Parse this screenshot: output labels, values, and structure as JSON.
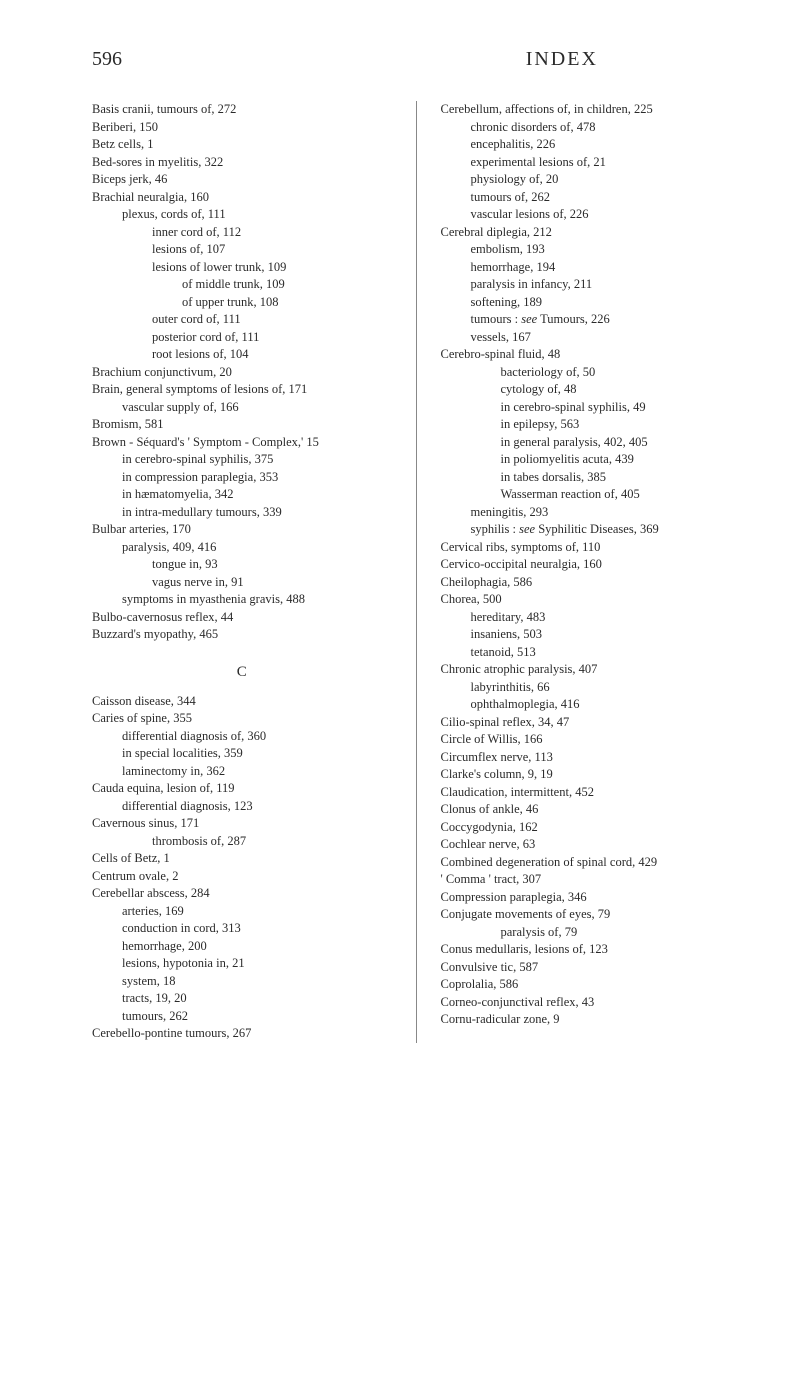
{
  "header": {
    "page_number": "596",
    "title": "INDEX"
  },
  "section_letter": "C",
  "left_column": [
    {
      "t": "Basis cranii, tumours of, 272",
      "l": 0
    },
    {
      "t": "Beriberi, 150",
      "l": 0
    },
    {
      "t": "Betz cells, 1",
      "l": 0
    },
    {
      "t": "Bed-sores in myelitis, 322",
      "l": 0
    },
    {
      "t": "Biceps jerk, 46",
      "l": 0
    },
    {
      "t": "Brachial neuralgia, 160",
      "l": 0
    },
    {
      "t": "plexus, cords of, 111",
      "l": 1
    },
    {
      "t": "inner cord of, 112",
      "l": 2
    },
    {
      "t": "lesions of, 107",
      "l": 2
    },
    {
      "t": "lesions of lower trunk, 109",
      "l": 2
    },
    {
      "t": "of middle trunk, 109",
      "l": 3
    },
    {
      "t": "of upper trunk, 108",
      "l": 3
    },
    {
      "t": "outer cord of, 111",
      "l": 2
    },
    {
      "t": "posterior cord of, 111",
      "l": 2
    },
    {
      "t": "root lesions of, 104",
      "l": 2
    },
    {
      "t": "Brachium conjunctivum, 20",
      "l": 0
    },
    {
      "t": "Brain, general symptoms of lesions of, 171",
      "l": 0
    },
    {
      "t": "vascular supply of, 166",
      "l": 1
    },
    {
      "t": "Bromism, 581",
      "l": 0
    },
    {
      "t": "Brown - Séquard's ' Symptom - Complex,' 15",
      "l": 0
    },
    {
      "t": "in cerebro-spinal syphilis, 375",
      "l": 1
    },
    {
      "t": "in compression paraplegia, 353",
      "l": 1
    },
    {
      "t": "in hæmatomyelia, 342",
      "l": 1
    },
    {
      "t": "in intra-medullary tumours, 339",
      "l": 1
    },
    {
      "t": "Bulbar arteries, 170",
      "l": 0
    },
    {
      "t": "paralysis, 409, 416",
      "l": 1
    },
    {
      "t": "tongue in, 93",
      "l": 2
    },
    {
      "t": "vagus nerve in, 91",
      "l": 2
    },
    {
      "t": "symptoms in myasthenia gravis, 488",
      "l": 1
    },
    {
      "t": "Bulbo-cavernosus reflex, 44",
      "l": 0
    },
    {
      "t": "Buzzard's myopathy, 465",
      "l": 0
    }
  ],
  "left_column_c": [
    {
      "t": "Caisson disease, 344",
      "l": 0
    },
    {
      "t": "Caries of spine, 355",
      "l": 0
    },
    {
      "t": "differential diagnosis of, 360",
      "l": 1
    },
    {
      "t": "in special localities, 359",
      "l": 1
    },
    {
      "t": "laminectomy in, 362",
      "l": 1
    },
    {
      "t": "Cauda equina, lesion of, 119",
      "l": 0
    },
    {
      "t": "differential diagnosis, 123",
      "l": 1
    },
    {
      "t": "Cavernous sinus, 171",
      "l": 0
    },
    {
      "t": "thrombosis of, 287",
      "l": 2
    },
    {
      "t": "Cells of Betz, 1",
      "l": 0
    },
    {
      "t": "Centrum ovale, 2",
      "l": 0
    },
    {
      "t": "Cerebellar abscess, 284",
      "l": 0
    },
    {
      "t": "arteries, 169",
      "l": 1
    },
    {
      "t": "conduction in cord, 313",
      "l": 1
    },
    {
      "t": "hemorrhage, 200",
      "l": 1
    },
    {
      "t": "lesions, hypotonia in, 21",
      "l": 1
    },
    {
      "t": "system, 18",
      "l": 1
    },
    {
      "t": "tracts, 19, 20",
      "l": 1
    },
    {
      "t": "tumours, 262",
      "l": 1
    },
    {
      "t": "Cerebello-pontine tumours, 267",
      "l": 0
    }
  ],
  "right_column": [
    {
      "t": "Cerebellum, affections of, in children, 225",
      "l": 0
    },
    {
      "t": "chronic disorders of, 478",
      "l": 1
    },
    {
      "t": "encephalitis, 226",
      "l": 1
    },
    {
      "t": "experimental lesions of, 21",
      "l": 1
    },
    {
      "t": "physiology of, 20",
      "l": 1
    },
    {
      "t": "tumours of, 262",
      "l": 1
    },
    {
      "t": "vascular lesions of, 226",
      "l": 1
    },
    {
      "t": "Cerebral diplegia, 212",
      "l": 0
    },
    {
      "t": "embolism, 193",
      "l": 1
    },
    {
      "t": "hemorrhage, 194",
      "l": 1
    },
    {
      "t": "paralysis in infancy, 211",
      "l": 1
    },
    {
      "t": "softening, 189",
      "l": 1
    },
    {
      "t": "tumours : see Tumours, 226",
      "l": 1,
      "italic_word": "see"
    },
    {
      "t": "vessels, 167",
      "l": 1
    },
    {
      "t": "Cerebro-spinal fluid, 48",
      "l": 0
    },
    {
      "t": "bacteriology of, 50",
      "l": 2
    },
    {
      "t": "cytology of, 48",
      "l": 2
    },
    {
      "t": "in cerebro-spinal syphilis, 49",
      "l": 2
    },
    {
      "t": "in epilepsy, 563",
      "l": 2
    },
    {
      "t": "in general paralysis, 402, 405",
      "l": 2
    },
    {
      "t": "in poliomyelitis acuta, 439",
      "l": 2
    },
    {
      "t": "in tabes dorsalis, 385",
      "l": 2
    },
    {
      "t": "Wasserman reaction of, 405",
      "l": 2
    },
    {
      "t": "meningitis, 293",
      "l": 1
    },
    {
      "t": "syphilis : see Syphilitic Diseases, 369",
      "l": 1,
      "italic_word": "see"
    },
    {
      "t": "Cervical ribs, symptoms of, 110",
      "l": 0
    },
    {
      "t": "Cervico-occipital neuralgia, 160",
      "l": 0
    },
    {
      "t": "Cheilophagia, 586",
      "l": 0
    },
    {
      "t": "Chorea, 500",
      "l": 0
    },
    {
      "t": "hereditary, 483",
      "l": 1
    },
    {
      "t": "insaniens, 503",
      "l": 1
    },
    {
      "t": "tetanoid, 513",
      "l": 1
    },
    {
      "t": "Chronic atrophic paralysis, 407",
      "l": 0
    },
    {
      "t": "labyrinthitis, 66",
      "l": 1
    },
    {
      "t": "ophthalmoplegia, 416",
      "l": 1
    },
    {
      "t": "Cilio-spinal reflex, 34, 47",
      "l": 0
    },
    {
      "t": "Circle of Willis, 166",
      "l": 0
    },
    {
      "t": "Circumflex nerve, 113",
      "l": 0
    },
    {
      "t": "Clarke's column, 9, 19",
      "l": 0
    },
    {
      "t": "Claudication, intermittent, 452",
      "l": 0
    },
    {
      "t": "Clonus of ankle, 46",
      "l": 0
    },
    {
      "t": "Coccygodynia, 162",
      "l": 0
    },
    {
      "t": "Cochlear nerve, 63",
      "l": 0
    },
    {
      "t": "Combined degeneration of spinal cord, 429",
      "l": 0
    },
    {
      "t": "' Comma ' tract, 307",
      "l": 0
    },
    {
      "t": "Compression paraplegia, 346",
      "l": 0
    },
    {
      "t": "Conjugate movements of eyes, 79",
      "l": 0
    },
    {
      "t": "paralysis of, 79",
      "l": 2
    },
    {
      "t": "Conus medullaris, lesions of, 123",
      "l": 0
    },
    {
      "t": "Convulsive tic, 587",
      "l": 0
    },
    {
      "t": "Coprolalia, 586",
      "l": 0
    },
    {
      "t": "Corneo-conjunctival reflex, 43",
      "l": 0
    },
    {
      "t": "Cornu-radicular zone, 9",
      "l": 0
    }
  ]
}
